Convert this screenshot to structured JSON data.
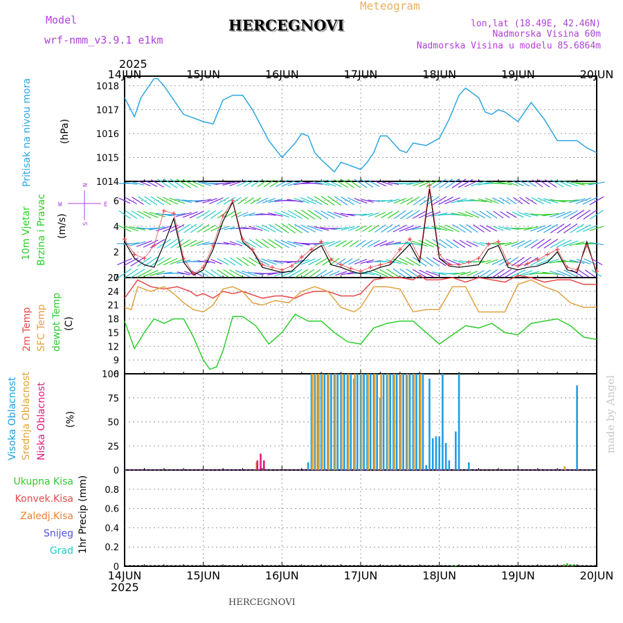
{
  "header": {
    "model_label": "Model",
    "model_name": "wrf-nmm_v3.9.1 e1km",
    "meteogram_label": "Meteogram",
    "station": "HERCEGNOVI",
    "lonlat": "lon,lat (18.49E, 42.46N)",
    "altitude": "Nadmorska Visina 60m",
    "model_altitude": "Nadmorska Visina u modelu 85.6864m",
    "year": "2025",
    "dates": [
      "14JUN",
      "15JUN",
      "16JUN",
      "17JUN",
      "18JUN",
      "19JUN",
      "20JUN"
    ],
    "footer_station": "HERCEGNOVI",
    "watermark": "made by Angel"
  },
  "colors": {
    "pressure": "#2aa5e0",
    "temp2m": "#e8474a",
    "sfc": "#e0a040",
    "dewpt": "#2ccd2c",
    "high_cloud": "#1e9de3",
    "mid_cloud": "#e0a030",
    "low_cloud": "#e0197d",
    "wind_speed": "#000000",
    "wind_gust": "#e8474a",
    "wind_barbs": [
      "#2aa5e0",
      "#7a2ae0",
      "#22c9c9",
      "#2ccd2c"
    ]
  },
  "panels": {
    "pressure": {
      "labels": [
        "Pritisak na nivou mora"
      ],
      "unit": "(hPa)",
      "ticks": [
        "1018",
        "1017",
        "1016",
        "1015",
        "1014"
      ]
    },
    "wind": {
      "labels": [
        "10m Vjetar",
        "Brzina i Pravac"
      ],
      "unit": "(m/s)",
      "ticks": [
        "6",
        "4",
        "2",
        "0"
      ],
      "compass": {
        "n": "N",
        "s": "S",
        "w": "W",
        "e": "E"
      }
    },
    "temp": {
      "labels": [
        "2m Temp",
        "SFC Temp",
        "dewpt Temp"
      ],
      "unit": "(C)",
      "ticks": [
        "27",
        "24",
        "21",
        "18",
        "15",
        "12",
        "9",
        "6"
      ]
    },
    "cloud": {
      "labels": [
        "Visoka Oblacnost",
        "Srednja Oblacnost",
        "Niska Oblacnost"
      ],
      "unit": "(%)",
      "ticks": [
        "100",
        "75",
        "50",
        "25",
        "0"
      ]
    },
    "precip": {
      "labels": [
        "Ukupna Kisa",
        "Konvek.Kisa",
        "Zaledj.Kisa",
        "Snijeg",
        "Grad"
      ],
      "unit": "1hr Precip (mm)",
      "ticks": [
        "0.8",
        "0.6",
        "0.4",
        "0.2",
        "0"
      ]
    }
  },
  "chart_data": [
    {
      "type": "line",
      "title": "Pritisak na nivou mora",
      "ylabel": "(hPa)",
      "ylim": [
        1014,
        1018.4
      ],
      "xlim_hours": [
        0,
        144
      ],
      "series": [
        {
          "name": "Pritisak na nivou mora",
          "x": [
            0,
            3,
            5,
            9,
            10,
            12,
            18,
            20,
            24,
            27,
            30,
            33,
            36,
            39,
            44,
            48,
            52,
            54,
            56,
            58,
            60,
            64,
            66,
            68,
            72,
            74,
            76,
            78,
            80,
            84,
            86,
            88,
            92,
            96,
            99,
            102,
            104,
            108,
            110,
            112,
            114,
            116,
            120,
            122,
            124,
            128,
            132,
            136,
            138,
            141,
            144
          ],
          "y": [
            1017.5,
            1016.7,
            1017.5,
            1018.3,
            1018.3,
            1018.0,
            1016.8,
            1016.7,
            1016.5,
            1016.4,
            1017.4,
            1017.6,
            1017.6,
            1017.0,
            1015.7,
            1015.0,
            1015.6,
            1016.0,
            1015.9,
            1015.2,
            1014.9,
            1014.4,
            1014.8,
            1014.7,
            1014.5,
            1014.8,
            1015.2,
            1015.9,
            1015.9,
            1015.3,
            1015.2,
            1015.6,
            1015.5,
            1015.8,
            1016.6,
            1017.6,
            1017.9,
            1017.5,
            1016.9,
            1016.8,
            1017.0,
            1016.9,
            1016.5,
            1016.9,
            1017.3,
            1016.6,
            1015.7,
            1015.7,
            1015.7,
            1015.4,
            1015.2
          ]
        }
      ]
    },
    {
      "type": "line",
      "title": "10m Vjetar Brzina i Pravac",
      "ylabel": "(m/s)",
      "ylim": [
        0,
        7.5
      ],
      "xlim_hours": [
        0,
        144
      ],
      "series": [
        {
          "name": "Brzina",
          "x": [
            0,
            3,
            6,
            9,
            12,
            15,
            18,
            21,
            24,
            27,
            30,
            33,
            36,
            39,
            42,
            45,
            48,
            51,
            54,
            57,
            60,
            63,
            66,
            69,
            72,
            75,
            78,
            81,
            84,
            87,
            90,
            93,
            96,
            99,
            102,
            105,
            108,
            111,
            114,
            117,
            120,
            123,
            126,
            129,
            132,
            135,
            138,
            141,
            144
          ],
          "y": [
            2.8,
            1.5,
            1.0,
            0.8,
            2.6,
            4.6,
            1.2,
            0.2,
            0.6,
            2.2,
            4.4,
            5.9,
            2.8,
            2.1,
            0.8,
            0.6,
            0.4,
            0.5,
            1.2,
            2.0,
            2.5,
            1.0,
            0.8,
            0.5,
            0.3,
            0.5,
            0.8,
            1.0,
            1.8,
            2.6,
            1.2,
            6.9,
            1.5,
            0.9,
            0.8,
            0.9,
            1.0,
            2.2,
            2.5,
            0.8,
            0.6,
            0.8,
            0.9,
            1.2,
            2.0,
            0.6,
            0.4,
            2.8,
            0.3
          ]
        },
        {
          "name": "Udari",
          "x": [
            0,
            3,
            6,
            9,
            12,
            15,
            18,
            21,
            24,
            27,
            30,
            33,
            36,
            39,
            42,
            45,
            48,
            51,
            54,
            57,
            60,
            63,
            66,
            69,
            72,
            75,
            78,
            81,
            84,
            87,
            90,
            93,
            96,
            99,
            102,
            105,
            108,
            111,
            114,
            117,
            120,
            123,
            126,
            129,
            132,
            135,
            138,
            141,
            144
          ],
          "y": [
            3.0,
            1.8,
            1.5,
            2.5,
            5.2,
            5.0,
            1.5,
            0.3,
            0.8,
            2.5,
            4.8,
            6.0,
            3.0,
            2.2,
            1.0,
            0.8,
            0.6,
            0.9,
            1.6,
            2.2,
            2.8,
            1.4,
            1.0,
            0.7,
            0.5,
            0.8,
            1.0,
            1.2,
            2.2,
            3.0,
            1.5,
            7.2,
            1.8,
            1.0,
            1.0,
            1.2,
            1.5,
            2.6,
            2.8,
            1.1,
            0.9,
            1.1,
            1.4,
            1.8,
            2.2,
            0.8,
            0.6,
            2.5,
            0.5
          ]
        }
      ]
    },
    {
      "type": "line",
      "title": "2m Temp / SFC Temp / dewpt Temp",
      "ylabel": "(C)",
      "ylim": [
        6,
        27
      ],
      "xlim_hours": [
        0,
        144
      ],
      "series": [
        {
          "name": "2m Temp",
          "x": [
            0,
            4,
            8,
            12,
            16,
            20,
            22,
            24,
            27,
            30,
            33,
            36,
            42,
            46,
            48,
            52,
            55,
            58,
            62,
            66,
            70,
            72,
            76,
            80,
            84,
            88,
            90,
            92,
            96,
            100,
            104,
            108,
            112,
            116,
            120,
            124,
            128,
            132,
            136,
            140,
            144
          ],
          "y": [
            22.5,
            26.5,
            25,
            24.5,
            25,
            24,
            23,
            23.5,
            22.5,
            24,
            23.5,
            24,
            22.5,
            23,
            23,
            22.5,
            23.5,
            24,
            24,
            23,
            23,
            23.5,
            26.5,
            27,
            27,
            26.5,
            27.5,
            26.5,
            26.5,
            27,
            26,
            27,
            26.5,
            26,
            27.5,
            27,
            26,
            26.5,
            26.5,
            25.5,
            25.5
          ]
        },
        {
          "name": "SFC Temp",
          "x": [
            0,
            2,
            4,
            8,
            12,
            15,
            18,
            21,
            24,
            27,
            30,
            33,
            36,
            39,
            42,
            46,
            50,
            54,
            58,
            62,
            66,
            70,
            72,
            76,
            80,
            84,
            88,
            92,
            96,
            100,
            104,
            108,
            112,
            116,
            120,
            124,
            128,
            132,
            136,
            140,
            144
          ],
          "y": [
            20.5,
            20,
            25,
            24,
            25,
            23.5,
            21.5,
            20,
            19.5,
            21,
            24.5,
            25,
            24,
            21.5,
            21,
            22,
            21.5,
            24,
            25,
            24,
            20.5,
            19.5,
            20.5,
            25,
            25,
            24.5,
            19.5,
            20,
            20,
            25,
            25,
            19.5,
            19.5,
            19.5,
            25.5,
            26.5,
            25,
            24,
            21.5,
            20.5,
            20.5
          ]
        },
        {
          "name": "dewpt Temp",
          "x": [
            0,
            3,
            6,
            9,
            12,
            15,
            18,
            21,
            24,
            26,
            28,
            30,
            33,
            36,
            40,
            44,
            48,
            52,
            56,
            60,
            64,
            68,
            72,
            76,
            80,
            84,
            88,
            92,
            96,
            100,
            104,
            108,
            112,
            116,
            120,
            124,
            128,
            132,
            136,
            140,
            144
          ],
          "y": [
            17.5,
            11.5,
            15,
            18,
            17,
            18,
            18,
            14,
            9,
            7,
            7.5,
            11,
            18.5,
            18.5,
            16.5,
            12.5,
            15,
            19,
            17.5,
            17.5,
            15,
            13,
            12.5,
            16,
            17,
            17.5,
            17.5,
            15,
            12.5,
            14.5,
            16.5,
            16,
            17,
            15,
            14.5,
            17,
            17.5,
            18,
            16.5,
            14,
            13.5
          ]
        }
      ]
    },
    {
      "type": "bar",
      "title": "Visoka / Srednja / Niska Oblacnost",
      "ylabel": "(%)",
      "ylim": [
        0,
        100
      ],
      "xlim_hours": [
        0,
        144
      ],
      "series": [
        {
          "name": "Visoka Oblacnost",
          "x": [
            56,
            57,
            58,
            59,
            60,
            61,
            62,
            63,
            64,
            65,
            66,
            67,
            68,
            69,
            70,
            71,
            72,
            73,
            74,
            75,
            76,
            77,
            78,
            79,
            80,
            81,
            82,
            83,
            84,
            85,
            86,
            87,
            88,
            89,
            90,
            91,
            92,
            93,
            94,
            95,
            96,
            97,
            98,
            99,
            101,
            102,
            105,
            138
          ],
          "y": [
            8,
            100,
            100,
            100,
            100,
            100,
            100,
            100,
            100,
            100,
            100,
            100,
            100,
            100,
            95,
            100,
            100,
            100,
            100,
            100,
            100,
            100,
            75,
            100,
            100,
            100,
            100,
            100,
            100,
            100,
            100,
            100,
            100,
            100,
            100,
            100,
            5,
            95,
            33,
            35,
            35,
            100,
            28,
            10,
            40,
            100,
            8,
            88
          ]
        },
        {
          "name": "Srednja Oblacnost",
          "x": [
            40,
            57,
            58,
            59,
            60,
            62,
            64,
            66,
            68,
            70,
            72,
            74,
            76,
            78,
            80,
            82,
            84,
            86,
            88,
            90,
            134
          ],
          "y": [
            8,
            100,
            100,
            100,
            100,
            100,
            100,
            100,
            100,
            100,
            100,
            100,
            100,
            100,
            100,
            100,
            100,
            100,
            100,
            100,
            4
          ]
        },
        {
          "name": "Niska Oblacnost",
          "x": [
            40,
            41,
            42
          ],
          "y": [
            10,
            17,
            10
          ]
        }
      ]
    },
    {
      "type": "bar",
      "title": "1hr Precip",
      "ylabel": "1hr Precip (mm)",
      "ylim": [
        0,
        1.0
      ],
      "xlim_hours": [
        0,
        144
      ],
      "series": [
        {
          "name": "Ukupna Kisa",
          "x": [
            100,
            101,
            134,
            135,
            136,
            137
          ],
          "y": [
            0.01,
            0.01,
            0.02,
            0.03,
            0.02,
            0.02
          ]
        },
        {
          "name": "Konvek.Kisa",
          "x": [
            134,
            136
          ],
          "y": [
            0.01,
            0.01
          ]
        },
        {
          "name": "Zaledj.Kisa",
          "x": [],
          "y": []
        },
        {
          "name": "Snijeg",
          "x": [],
          "y": []
        },
        {
          "name": "Grad",
          "x": [],
          "y": []
        }
      ]
    }
  ]
}
